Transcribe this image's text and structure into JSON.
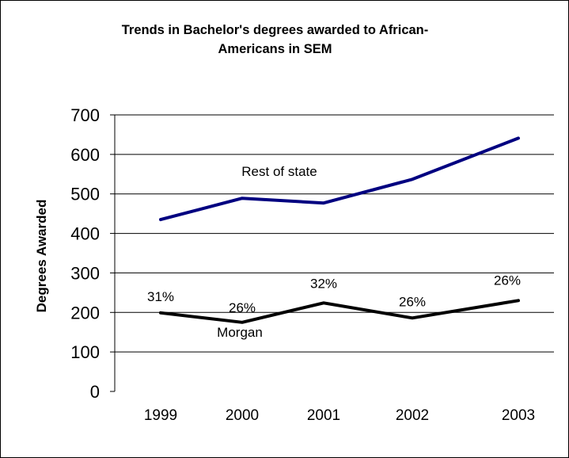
{
  "chart_data": {
    "type": "line",
    "title_line1": "Trends in Bachelor's degrees awarded to African-",
    "title_line2": "Americans in SEM",
    "ylabel": "Degrees Awarded",
    "xlabel": "",
    "categories": [
      "1999",
      "2000",
      "2001",
      "2002",
      "2003"
    ],
    "ylim": [
      0,
      700
    ],
    "yticks": [
      "0",
      "100",
      "200",
      "300",
      "400",
      "500",
      "600",
      "700"
    ],
    "grid": true,
    "series": [
      {
        "name": "Rest of state",
        "values": [
          435,
          489,
          477,
          537,
          641
        ],
        "color": "#000080"
      },
      {
        "name": "Morgan",
        "values": [
          199,
          175,
          224,
          186,
          230
        ],
        "color": "#000000"
      }
    ],
    "data_labels": [
      "31%",
      "26%",
      "32%",
      "26%",
      "26%"
    ]
  }
}
